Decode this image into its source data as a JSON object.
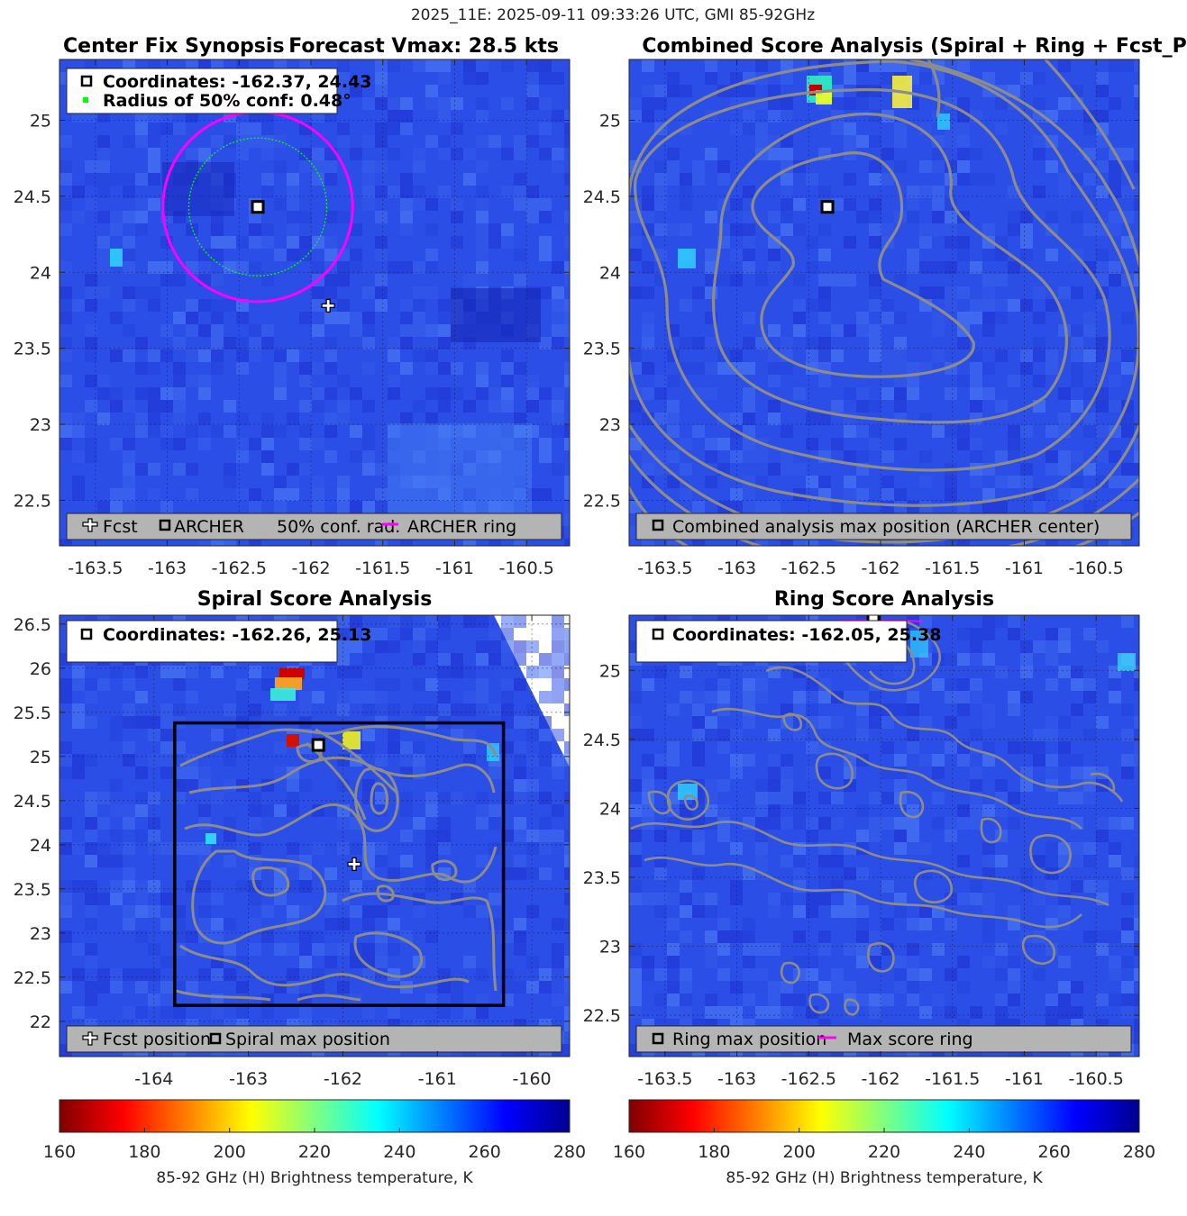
{
  "suptitle": "2025_11E: 2025-09-11 09:33:26 UTC, GMI 85-92GHz",
  "colors": {
    "contour": "#8c8c8c",
    "ring": "#ff00ff",
    "conf": "#00ff00",
    "legend_bg": "#b4b4b4"
  },
  "chart_data": [
    {
      "id": "center-fix",
      "type": "heatmap",
      "title": "Center Fix Synopsis",
      "title_right": "Forecast Vmax: 28.5 kts",
      "xlim": [
        -163.75,
        -160.2
      ],
      "ylim": [
        22.2,
        25.4
      ],
      "xticks": [
        "-163.5",
        "-163",
        "-162.5",
        "-162",
        "-161.5",
        "-161",
        "-160.5"
      ],
      "xtick_values": [
        -163.5,
        -163,
        -162.5,
        -162,
        -161.5,
        -161,
        -160.5
      ],
      "yticks": [
        "22.5",
        "23",
        "23.5",
        "24",
        "24.5",
        "25"
      ],
      "ytick_values": [
        22.5,
        23,
        23.5,
        24,
        24.5,
        25
      ],
      "info": [
        "Coordinates: -162.37, 24.43",
        "Radius of 50% conf: 0.48°"
      ],
      "legend": [
        "Fcst",
        "ARCHER",
        "50% conf. rad.",
        "ARCHER ring"
      ],
      "archer_center": [
        -162.37,
        24.43
      ],
      "fcst_position": [
        -161.88,
        23.78
      ],
      "conf_radius": 0.48,
      "ring_radius": 0.66
    },
    {
      "id": "combined-score",
      "type": "heatmap",
      "title": "Combined Score Analysis (Spiral + Ring + Fcst_Pe",
      "xlim": [
        -163.75,
        -160.2
      ],
      "ylim": [
        22.2,
        25.4
      ],
      "xticks": [
        "-163.5",
        "-163",
        "-162.5",
        "-162",
        "-161.5",
        "-161",
        "-160.5"
      ],
      "xtick_values": [
        -163.5,
        -163,
        -162.5,
        -162,
        -161.5,
        -161,
        -160.5
      ],
      "yticks": [
        "22.5",
        "23",
        "23.5",
        "24",
        "24.5",
        "25"
      ],
      "ytick_values": [
        22.5,
        23,
        23.5,
        24,
        24.5,
        25
      ],
      "legend": [
        "Combined analysis max position (ARCHER center)"
      ],
      "max_position": [
        -162.37,
        24.43
      ]
    },
    {
      "id": "spiral-score",
      "type": "heatmap",
      "title": "Spiral Score Analysis",
      "xlim": [
        -165,
        -159.6
      ],
      "ylim": [
        21.6,
        26.6
      ],
      "xticks": [
        "-164",
        "-163",
        "-162",
        "-161",
        "-160"
      ],
      "xtick_values": [
        -164,
        -163,
        -162,
        -161,
        -160
      ],
      "yticks": [
        "22",
        "22.5",
        "23",
        "23.5",
        "24",
        "24.5",
        "25",
        "25.5",
        "26",
        "26.5"
      ],
      "ytick_values": [
        22,
        22.5,
        23,
        23.5,
        24,
        24.5,
        25,
        25.5,
        26,
        26.5
      ],
      "info": [
        "Coordinates: -162.26, 25.13"
      ],
      "legend": [
        "Fcst position",
        "Spiral max position"
      ],
      "spiral_max": [
        -162.26,
        25.13
      ],
      "fcst_position": [
        -161.88,
        23.78
      ],
      "box": {
        "x0": -163.78,
        "x1": -160.3,
        "y0": 22.18,
        "y1": 25.38
      }
    },
    {
      "id": "ring-score",
      "type": "heatmap",
      "title": "Ring Score Analysis",
      "xlim": [
        -163.75,
        -160.2
      ],
      "ylim": [
        22.2,
        25.4
      ],
      "xticks": [
        "-163.5",
        "-163",
        "-162.5",
        "-162",
        "-161.5",
        "-161",
        "-160.5"
      ],
      "xtick_values": [
        -163.5,
        -163,
        -162.5,
        -162,
        -161.5,
        -161,
        -160.5
      ],
      "yticks": [
        "22.5",
        "23",
        "23.5",
        "24",
        "24.5",
        "25"
      ],
      "ytick_values": [
        22.5,
        23,
        23.5,
        24,
        24.5,
        25
      ],
      "info": [
        "Coordinates: -162.05, 25.38"
      ],
      "legend": [
        "Ring max position",
        "Max score ring"
      ],
      "ring_max": [
        -162.05,
        25.38
      ]
    }
  ],
  "colorbars": [
    {
      "id": "cb-left",
      "ticks": [
        "160",
        "180",
        "200",
        "220",
        "240",
        "260",
        "280"
      ],
      "tick_values": [
        160,
        180,
        200,
        220,
        240,
        260,
        280
      ],
      "label": "85-92 GHz (H) Brightness temperature, K"
    },
    {
      "id": "cb-right",
      "ticks": [
        "160",
        "180",
        "200",
        "220",
        "240",
        "260",
        "280"
      ],
      "tick_values": [
        160,
        180,
        200,
        220,
        240,
        260,
        280
      ],
      "label": "85-92 GHz (H) Brightness temperature, K"
    }
  ]
}
